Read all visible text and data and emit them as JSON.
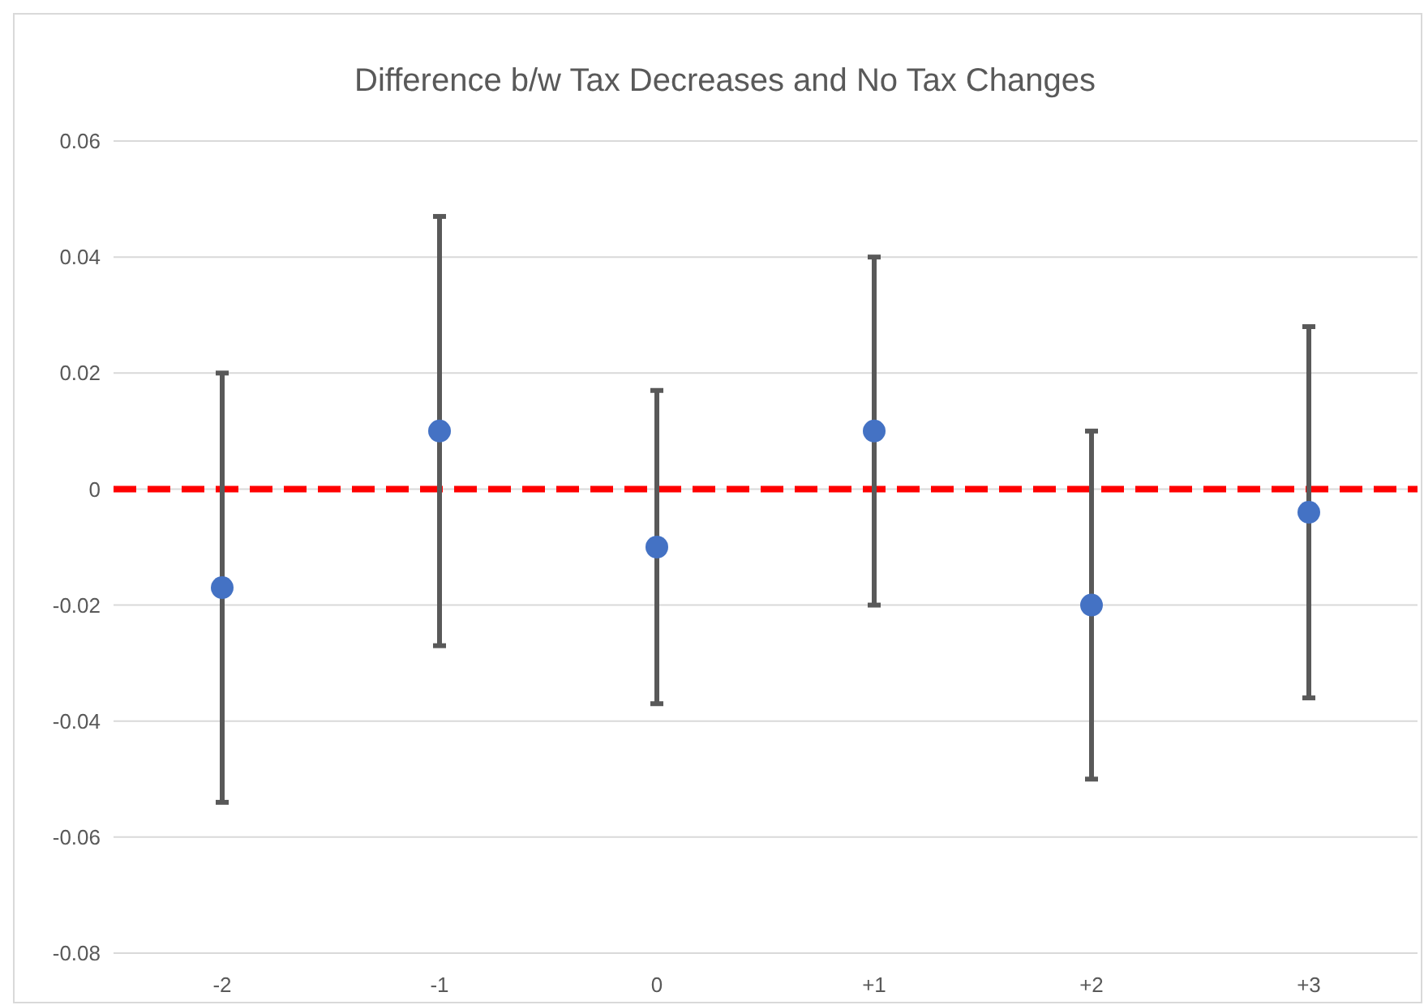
{
  "chart_data": {
    "type": "scatter",
    "title": "Difference b/w Tax Decreases and No Tax Changes",
    "categories": [
      "-2",
      "-1",
      "0",
      "+1",
      "+2",
      "+3"
    ],
    "series": [
      {
        "color": "#4472c4",
        "values": [
          -0.017,
          0.01,
          -0.01,
          0.01,
          -0.02,
          -0.004
        ],
        "errors": [
          [
            -0.054,
            0.02
          ],
          [
            -0.027,
            0.047
          ],
          [
            -0.037,
            0.017
          ],
          [
            -0.02,
            0.04
          ],
          [
            -0.05,
            0.01
          ],
          [
            -0.036,
            0.028
          ]
        ]
      }
    ],
    "ylim": [
      -0.08,
      0.06
    ],
    "yticks": [
      {
        "value": -0.08,
        "label": "-0.08"
      },
      {
        "value": -0.06,
        "label": "-0.06"
      },
      {
        "value": -0.04,
        "label": "-0.04"
      },
      {
        "value": -0.02,
        "label": "-0.02"
      },
      {
        "value": 0,
        "label": "0"
      },
      {
        "value": 0.02,
        "label": "0.02"
      },
      {
        "value": 0.04,
        "label": "0.04"
      },
      {
        "value": 0.06,
        "label": "0.06"
      }
    ],
    "grid": "y",
    "marker": "circle",
    "ref_lines": [
      {
        "axis": "y",
        "value": 0,
        "color": "#ff0000",
        "line_style": "dashed"
      }
    ]
  }
}
